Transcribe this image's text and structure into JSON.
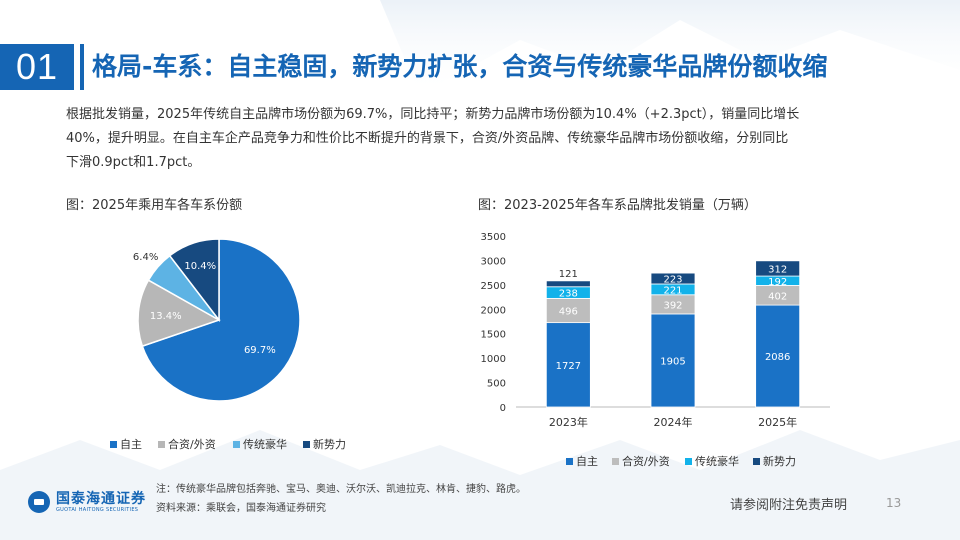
{
  "header": {
    "section_number": "01",
    "title": "格局-车系：自主稳固，新势力扩张，合资与传统豪华品牌份额收缩"
  },
  "summary": {
    "line1": "根据批发销量，2025年传统自主品牌市场份额为69.7%，同比持平；新势力品牌市场份额为10.4%（+2.3pct），销量同比增长",
    "line2": "40%，提升明显。在自主车企产品竞争力和性价比不断提升的背景下，合资/外资品牌、传统豪华品牌市场份额收缩，分别同比",
    "line3": "下滑0.9pct和1.7pct。"
  },
  "chart_data": [
    {
      "type": "pie",
      "title": "图：2025年乘用车各车系份额",
      "categories": [
        "自主",
        "合资/外资",
        "传统豪华",
        "新势力"
      ],
      "values": [
        69.7,
        13.4,
        6.4,
        10.4
      ],
      "labels": [
        "69.7%",
        "13.4%",
        "6.4%",
        "10.4%"
      ],
      "colors": [
        "#1a72c6",
        "#b7b7b7",
        "#5db3e4",
        "#174a80"
      ],
      "legend_position": "bottom"
    },
    {
      "type": "bar",
      "stacked": true,
      "title": "图：2023-2025年各车系品牌批发销量（万辆）",
      "categories": [
        "2023年",
        "2024年",
        "2025年"
      ],
      "series": [
        {
          "name": "自主",
          "values": [
            1727,
            1905,
            2086
          ],
          "color": "#1a72c6"
        },
        {
          "name": "合资/外资",
          "values": [
            496,
            392,
            402
          ],
          "color": "#bdbdbd"
        },
        {
          "name": "传统豪华",
          "values": [
            238,
            221,
            192
          ],
          "color": "#12b2ea"
        },
        {
          "name": "新势力",
          "values": [
            121,
            223,
            312
          ],
          "color": "#174a80"
        }
      ],
      "ylim": [
        0,
        3500
      ],
      "yticks": [
        "0",
        "500",
        "1000",
        "1500",
        "2000",
        "2500",
        "3000",
        "3500"
      ],
      "legend_position": "bottom"
    }
  ],
  "footer": {
    "note": "注：传统豪华品牌包括奔驰、宝马、奥迪、沃尔沃、凯迪拉克、林肯、捷豹、路虎。",
    "source": "资料来源：乘联会，国泰海通证券研究",
    "logo_cn": "国泰海通证券",
    "logo_en": "GUOTAI HAITONG SECURITIES",
    "disclaimer": "请参阅附注免责声明",
    "page_number": "13"
  }
}
